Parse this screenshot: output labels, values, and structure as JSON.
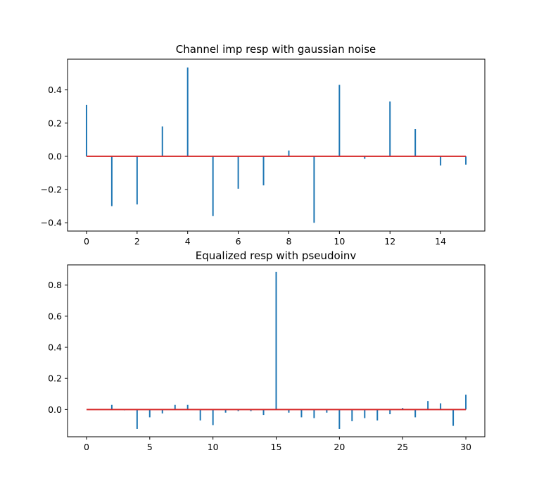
{
  "chart_data": [
    {
      "type": "stem",
      "title": "Channel imp resp with gaussian noise",
      "xlabel": "",
      "ylabel": "",
      "x": [
        0,
        1,
        2,
        3,
        4,
        5,
        6,
        7,
        8,
        9,
        10,
        11,
        12,
        13,
        14,
        15
      ],
      "values": [
        0.31,
        -0.3,
        -0.29,
        0.18,
        0.535,
        -0.36,
        -0.195,
        -0.175,
        0.035,
        -0.4,
        0.43,
        -0.015,
        0.33,
        0.165,
        -0.055,
        -0.05
      ],
      "xlim": [
        -0.75,
        15.75
      ],
      "ylim": [
        -0.45,
        0.585
      ],
      "xticks": [
        0,
        2,
        4,
        6,
        8,
        10,
        12,
        14
      ],
      "yticks": [
        -0.4,
        -0.2,
        0.0,
        0.2,
        0.4
      ],
      "ytick_labels": [
        "−0.4",
        "−0.2",
        "0.0",
        "0.2",
        "0.4"
      ],
      "stem_color": "#1f77b4",
      "baseline_color": "#d62728"
    },
    {
      "type": "stem",
      "title": "Equalized resp with pseudoinv",
      "xlabel": "",
      "ylabel": "",
      "x": [
        0,
        1,
        2,
        3,
        4,
        5,
        6,
        7,
        8,
        9,
        10,
        11,
        12,
        13,
        14,
        15,
        16,
        17,
        18,
        19,
        20,
        21,
        22,
        23,
        24,
        25,
        26,
        27,
        28,
        29,
        30
      ],
      "values": [
        0.0,
        0.0,
        0.03,
        -0.005,
        -0.125,
        -0.05,
        -0.025,
        0.03,
        0.03,
        -0.07,
        -0.1,
        -0.02,
        -0.01,
        -0.01,
        -0.035,
        0.885,
        -0.02,
        -0.05,
        -0.055,
        -0.02,
        -0.125,
        -0.075,
        -0.055,
        -0.07,
        -0.03,
        0.01,
        -0.05,
        0.055,
        0.04,
        -0.105,
        0.095
      ],
      "xlim": [
        -1.5,
        31.5
      ],
      "ylim": [
        -0.175,
        0.93
      ],
      "xticks": [
        0,
        5,
        10,
        15,
        20,
        25,
        30
      ],
      "yticks": [
        0.0,
        0.2,
        0.4,
        0.6,
        0.8
      ],
      "ytick_labels": [
        "0.0",
        "0.2",
        "0.4",
        "0.6",
        "0.8"
      ],
      "stem_color": "#1f77b4",
      "baseline_color": "#d62728"
    }
  ]
}
